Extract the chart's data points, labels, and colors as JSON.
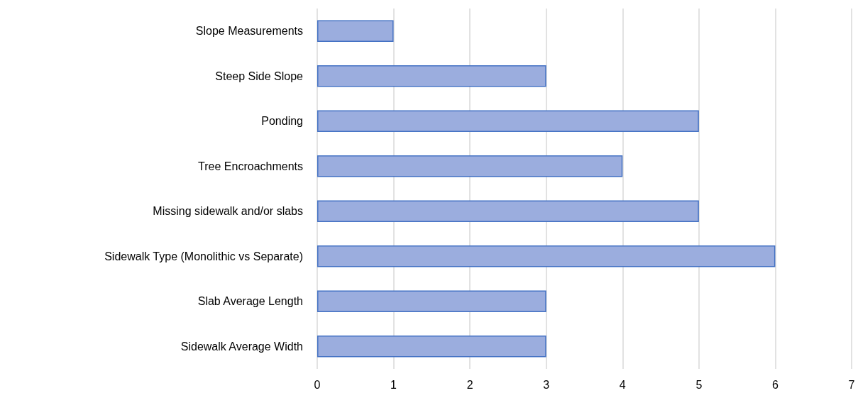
{
  "chart_data": {
    "type": "bar",
    "orientation": "horizontal",
    "categories": [
      "Slope Measurements",
      "Steep Side Slope",
      "Ponding",
      "Tree Encroachments",
      "Missing sidewalk and/or slabs",
      "Sidewalk Type (Monolithic vs Separate)",
      "Slab Average Length",
      "Sidewalk Average Width"
    ],
    "values": [
      1,
      3,
      5,
      4,
      5,
      6,
      3,
      3
    ],
    "color": "#9badde",
    "xlim": [
      0,
      7
    ],
    "xticks": [
      0,
      1,
      2,
      3,
      4,
      5,
      6,
      7
    ],
    "grid": "x"
  }
}
